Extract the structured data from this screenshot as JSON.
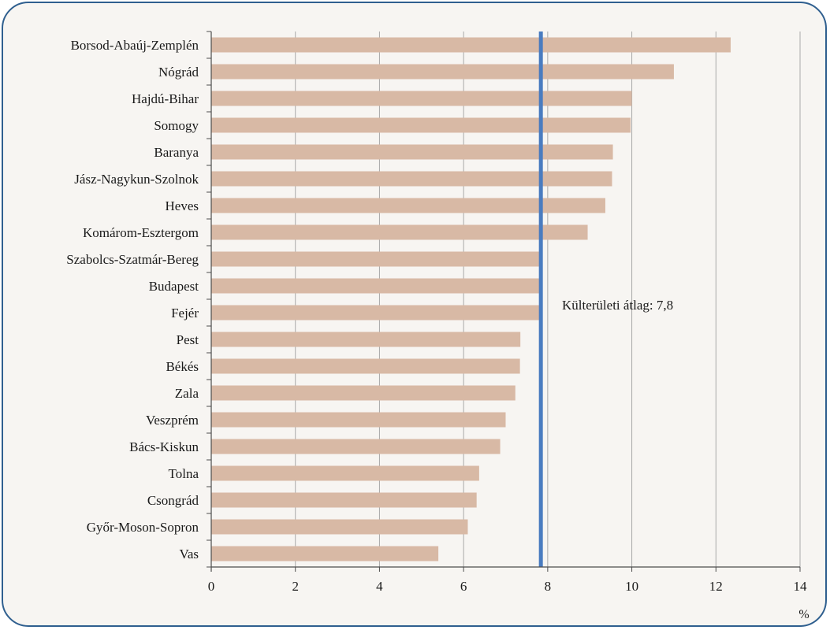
{
  "chart_data": {
    "type": "bar",
    "orientation": "horizontal",
    "categories": [
      "Borsod-Abaúj-Zemplén",
      "Nógrád",
      "Hajdú-Bihar",
      "Somogy",
      "Baranya",
      "Jász-Nagykun-Szolnok",
      "Heves",
      "Komárom-Esztergom",
      "Szabolcs-Szatmár-Bereg",
      "Budapest",
      "Fejér",
      "Pest",
      "Békés",
      "Zala",
      "Veszprém",
      "Bács-Kiskun",
      "Tolna",
      "Csongrád",
      "Győr-Moson-Sopron",
      "Vas"
    ],
    "values": [
      12.35,
      11.0,
      10.0,
      9.97,
      9.55,
      9.53,
      9.37,
      8.95,
      7.82,
      7.82,
      7.8,
      7.35,
      7.34,
      7.23,
      7.0,
      6.87,
      6.37,
      6.31,
      6.1,
      5.4
    ],
    "xlim": [
      0,
      14
    ],
    "xticks": [
      0,
      2,
      4,
      6,
      8,
      10,
      12,
      14
    ],
    "xunit": "%",
    "grid": "vertical",
    "bar_color": "#d8b9a5",
    "reference_line": {
      "value": 7.8,
      "label": "Külterületi átlag: 7,8",
      "color": "#4a7cc0"
    }
  }
}
